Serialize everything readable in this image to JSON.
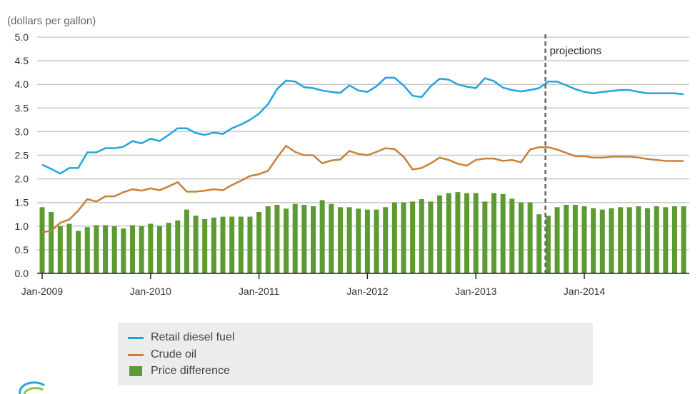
{
  "chart_data": {
    "type": "bar+line",
    "ylabel": "(dollars per gallon)",
    "ylim": [
      0,
      5
    ],
    "yticks": [
      "0.0",
      "0.5",
      "1.0",
      "1.5",
      "2.0",
      "2.5",
      "3.0",
      "3.5",
      "4.0",
      "4.5",
      "5.0"
    ],
    "xtick_labels": [
      "Jan-2009",
      "Jan-2010",
      "Jan-2011",
      "Jan-2012",
      "Jan-2013",
      "Jan-2014"
    ],
    "x_start": "Jan-2009",
    "months": 72,
    "projection_start_index": 55.7,
    "projection_label": "projections",
    "grid": true,
    "legend_position": "bottom",
    "series": [
      {
        "name": "Retail diesel fuel",
        "type": "line",
        "color": "#22a3de",
        "values": [
          2.3,
          2.21,
          2.11,
          2.23,
          2.23,
          2.56,
          2.56,
          2.65,
          2.65,
          2.68,
          2.8,
          2.75,
          2.85,
          2.8,
          2.93,
          3.07,
          3.07,
          2.97,
          2.93,
          2.98,
          2.95,
          3.07,
          3.15,
          3.25,
          3.38,
          3.58,
          3.9,
          4.08,
          4.06,
          3.94,
          3.92,
          3.87,
          3.84,
          3.82,
          3.98,
          3.87,
          3.84,
          3.96,
          4.14,
          4.14,
          3.98,
          3.76,
          3.73,
          3.96,
          4.12,
          4.1,
          4.0,
          3.95,
          3.92,
          4.13,
          4.07,
          3.93,
          3.88,
          3.85,
          3.88,
          3.92,
          4.06,
          4.06,
          3.98,
          3.9,
          3.84,
          3.81,
          3.84,
          3.86,
          3.88,
          3.88,
          3.84,
          3.81,
          3.81,
          3.81,
          3.81,
          3.79
        ]
      },
      {
        "name": "Crude oil",
        "type": "line",
        "color": "#c8803a",
        "values": [
          0.87,
          0.9,
          1.07,
          1.14,
          1.33,
          1.57,
          1.52,
          1.63,
          1.63,
          1.72,
          1.78,
          1.75,
          1.8,
          1.76,
          1.84,
          1.93,
          1.73,
          1.73,
          1.75,
          1.78,
          1.76,
          1.87,
          1.96,
          2.06,
          2.1,
          2.17,
          2.45,
          2.7,
          2.57,
          2.5,
          2.5,
          2.33,
          2.39,
          2.41,
          2.59,
          2.53,
          2.5,
          2.57,
          2.65,
          2.63,
          2.47,
          2.2,
          2.23,
          2.33,
          2.45,
          2.4,
          2.32,
          2.28,
          2.4,
          2.43,
          2.43,
          2.38,
          2.4,
          2.35,
          2.62,
          2.67,
          2.67,
          2.62,
          2.55,
          2.48,
          2.48,
          2.45,
          2.45,
          2.47,
          2.47,
          2.47,
          2.45,
          2.42,
          2.4,
          2.38,
          2.38,
          2.38
        ]
      },
      {
        "name": "Price difference",
        "type": "bar",
        "color": "#5c9a32",
        "values": [
          1.4,
          1.3,
          1.0,
          1.05,
          0.9,
          0.98,
          1.02,
          1.02,
          1.0,
          0.95,
          1.02,
          1.0,
          1.05,
          1.0,
          1.07,
          1.12,
          1.35,
          1.22,
          1.15,
          1.18,
          1.2,
          1.2,
          1.2,
          1.2,
          1.3,
          1.42,
          1.45,
          1.37,
          1.47,
          1.45,
          1.42,
          1.55,
          1.47,
          1.4,
          1.4,
          1.37,
          1.35,
          1.35,
          1.4,
          1.5,
          1.5,
          1.52,
          1.57,
          1.52,
          1.65,
          1.7,
          1.72,
          1.7,
          1.7,
          1.52,
          1.7,
          1.68,
          1.58,
          1.5,
          1.5,
          1.25,
          1.22,
          1.4,
          1.45,
          1.45,
          1.42,
          1.38,
          1.35,
          1.38,
          1.4,
          1.4,
          1.42,
          1.38,
          1.42,
          1.4,
          1.42,
          1.42
        ]
      }
    ]
  }
}
